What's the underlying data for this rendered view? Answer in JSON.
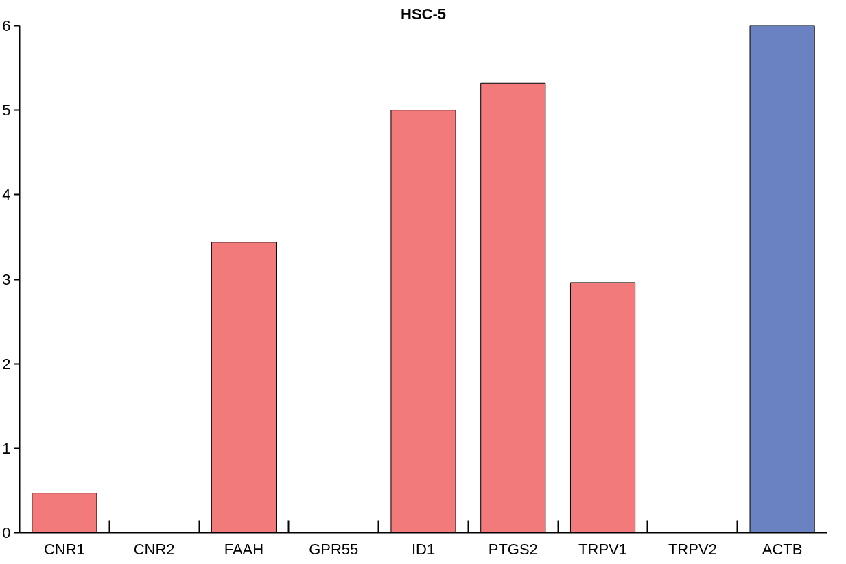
{
  "chart_data": {
    "type": "bar",
    "title": "HSC-5",
    "categories": [
      "CNR1",
      "CNR2",
      "FAAH",
      "GPR55",
      "ID1",
      "PTGS2",
      "TRPV1",
      "TRPV2",
      "ACTB"
    ],
    "values": [
      0.47,
      0,
      3.44,
      0,
      5.0,
      5.32,
      2.96,
      0,
      6.0
    ],
    "colors": [
      "#f27a7a",
      "#f27a7a",
      "#f27a7a",
      "#f27a7a",
      "#f27a7a",
      "#f27a7a",
      "#f27a7a",
      "#f27a7a",
      "#6a82c1"
    ],
    "ylim": [
      0,
      6
    ],
    "yticks": [
      0,
      1,
      2,
      3,
      4,
      5,
      6
    ],
    "grid": false
  }
}
